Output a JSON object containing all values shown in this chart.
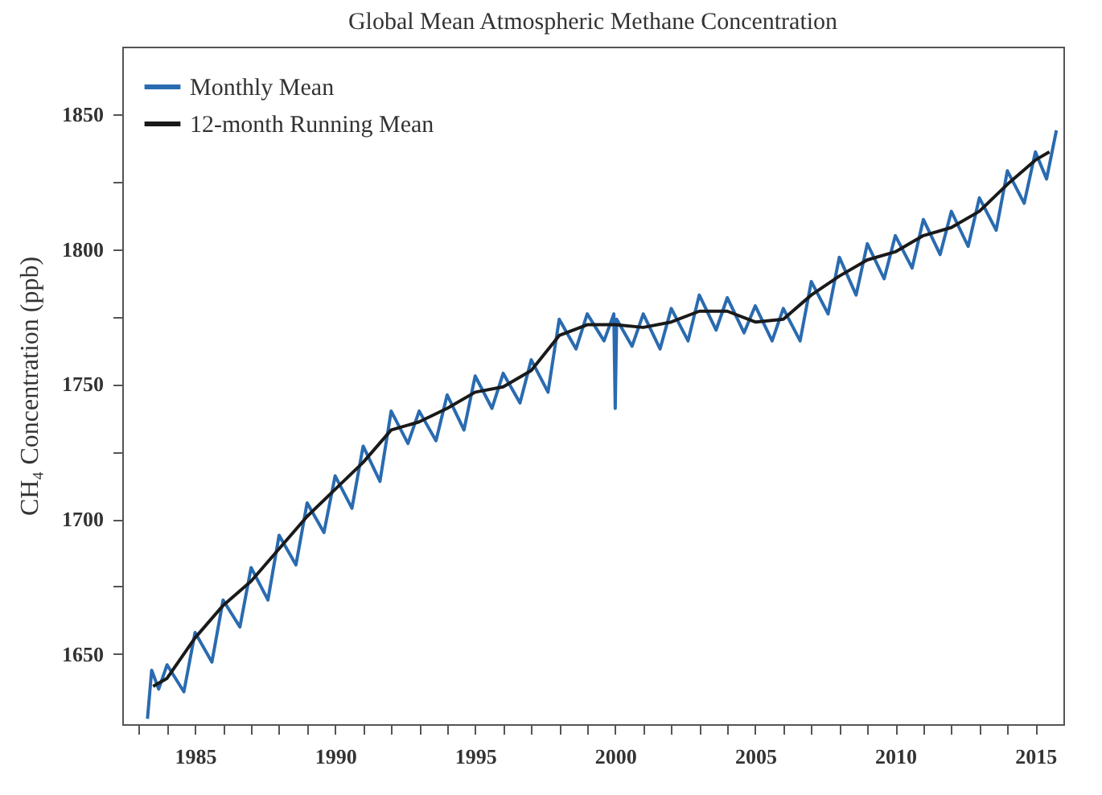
{
  "chart_data": {
    "type": "line",
    "title": "Global Mean Atmospheric Methane Concentration",
    "ylabel": "CH₄ Concentration (ppb)",
    "xlim": [
      1982.4,
      2016.0
    ],
    "xticks": [
      {
        "value": 1983,
        "label": null
      },
      {
        "value": 1984,
        "label": null
      },
      1985,
      {
        "value": 1986,
        "label": null
      },
      {
        "value": 1987,
        "label": null
      },
      {
        "value": 1988,
        "label": null
      },
      {
        "value": 1989,
        "label": null
      },
      1990,
      {
        "value": 1991,
        "label": null
      },
      {
        "value": 1992,
        "label": null
      },
      {
        "value": 1993,
        "label": null
      },
      {
        "value": 1994,
        "label": null
      },
      1995,
      {
        "value": 1996,
        "label": null
      },
      {
        "value": 1997,
        "label": null
      },
      {
        "value": 1998,
        "label": null
      },
      {
        "value": 1999,
        "label": null
      },
      2000,
      {
        "value": 2001,
        "label": null
      },
      {
        "value": 2002,
        "label": null
      },
      {
        "value": 2003,
        "label": null
      },
      {
        "value": 2004,
        "label": null
      },
      2005,
      {
        "value": 2006,
        "label": null
      },
      {
        "value": 2007,
        "label": null
      },
      {
        "value": 2008,
        "label": null
      },
      {
        "value": 2009,
        "label": null
      },
      2010,
      {
        "value": 2011,
        "label": null
      },
      {
        "value": 2012,
        "label": null
      },
      {
        "value": 2013,
        "label": null
      },
      {
        "value": 2014,
        "label": null
      },
      2015
    ],
    "ylim": [
      1624,
      1875
    ],
    "yticks": [
      1650,
      {
        "value": 1675,
        "label": null
      },
      1700,
      {
        "value": 1725,
        "label": null
      },
      1750,
      {
        "value": 1775,
        "label": null
      },
      1800,
      {
        "value": 1825,
        "label": null
      },
      1850
    ],
    "grid": false,
    "legend": "top left",
    "line_style": "solid",
    "marker": "none",
    "series": [
      {
        "name": "Monthly Mean",
        "color": "#2a6bb0",
        "x": [
          1983.3,
          1983.45,
          1983.7,
          1984.0,
          1984.6,
          1985.0,
          1985.6,
          1986.0,
          1986.6,
          1987.0,
          1987.6,
          1988.0,
          1988.6,
          1989.0,
          1989.6,
          1990.0,
          1990.6,
          1991.0,
          1991.6,
          1992.0,
          1992.6,
          1993.0,
          1993.6,
          1994.0,
          1994.6,
          1995.0,
          1995.6,
          1996.0,
          1996.6,
          1997.0,
          1997.6,
          1998.0,
          1998.6,
          1999.0,
          1999.6,
          1999.95,
          2000.0,
          2000.05,
          2000.6,
          2001.0,
          2001.6,
          2002.0,
          2002.6,
          2003.0,
          2003.6,
          2004.0,
          2004.6,
          2005.0,
          2005.6,
          2006.0,
          2006.6,
          2007.0,
          2007.6,
          2008.0,
          2008.6,
          2009.0,
          2009.6,
          2010.0,
          2010.6,
          2011.0,
          2011.6,
          2012.0,
          2012.6,
          2013.0,
          2013.6,
          2014.0,
          2014.6,
          2015.0,
          2015.4,
          2015.75
        ],
        "values": [
          1626,
          1644,
          1637,
          1646,
          1636,
          1658,
          1647,
          1670,
          1660,
          1682,
          1670,
          1694,
          1683,
          1706,
          1695,
          1716,
          1704,
          1727,
          1714,
          1740,
          1728,
          1740,
          1729,
          1746,
          1733,
          1753,
          1741,
          1754,
          1743,
          1759,
          1747,
          1774,
          1763,
          1776,
          1766,
          1776,
          1741,
          1774,
          1764,
          1776,
          1763,
          1778,
          1766,
          1783,
          1770,
          1782,
          1769,
          1779,
          1766,
          1778,
          1766,
          1788,
          1776,
          1797,
          1783,
          1802,
          1789,
          1805,
          1793,
          1811,
          1798,
          1814,
          1801,
          1819,
          1807,
          1829,
          1817,
          1836,
          1826,
          1844
        ]
      },
      {
        "name": "12-month Running Mean",
        "color": "#1a1a1a",
        "x": [
          1983.5,
          1984,
          1985,
          1986,
          1987,
          1988,
          1989,
          1990,
          1991,
          1992,
          1993,
          1994,
          1995,
          1996,
          1997,
          1998,
          1999,
          2000,
          2001,
          2002,
          2003,
          2004,
          2005,
          2006,
          2007,
          2008,
          2009,
          2010,
          2011,
          2012,
          2013,
          2014,
          2015,
          2015.5
        ],
        "values": [
          1638,
          1641,
          1656,
          1668,
          1677,
          1689,
          1701,
          1711,
          1721,
          1733,
          1736,
          1741,
          1747,
          1749,
          1755,
          1768,
          1772,
          1772,
          1771,
          1773,
          1777,
          1777,
          1773,
          1774,
          1783,
          1790,
          1796,
          1799,
          1805,
          1808,
          1814,
          1824,
          1833,
          1836
        ]
      }
    ]
  }
}
